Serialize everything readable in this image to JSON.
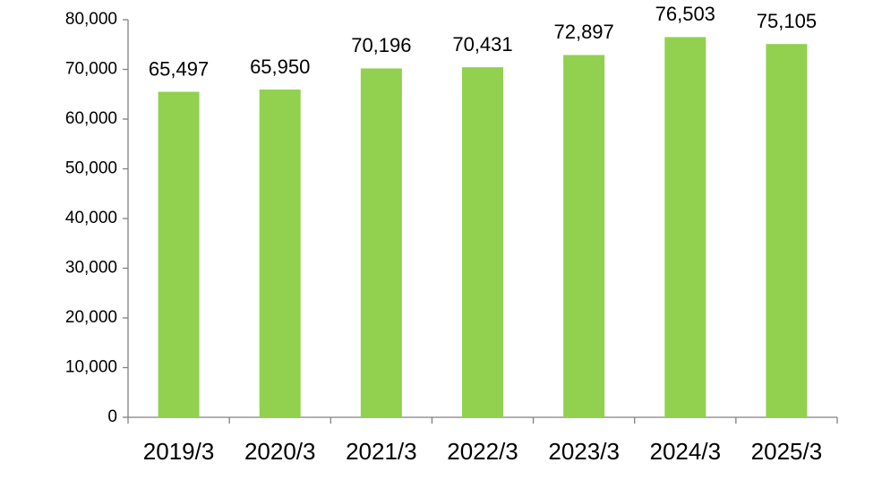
{
  "chart_data": {
    "type": "bar",
    "categories": [
      "2019/3",
      "2020/3",
      "2021/3",
      "2022/3",
      "2023/3",
      "2024/3",
      "2025/3"
    ],
    "values": [
      65497,
      65950,
      70196,
      70431,
      72897,
      76503,
      75105
    ],
    "value_labels": [
      "65,497",
      "65,950",
      "70,196",
      "70,431",
      "72,897",
      "76,503",
      "75,105"
    ],
    "color": "#92d050",
    "ylim": [
      0,
      80000
    ],
    "yticks": [
      0,
      {
        "value": 10000,
        "label": "10,000"
      },
      {
        "value": 20000,
        "label": "20,000"
      },
      {
        "value": 30000,
        "label": "30,000"
      },
      {
        "value": 40000,
        "label": "40,000"
      },
      {
        "value": 50000,
        "label": "50,000"
      },
      {
        "value": 60000,
        "label": "60,000"
      },
      {
        "value": 70000,
        "label": "70,000"
      },
      {
        "value": 80000,
        "label": "80,000"
      }
    ],
    "grid": false
  }
}
